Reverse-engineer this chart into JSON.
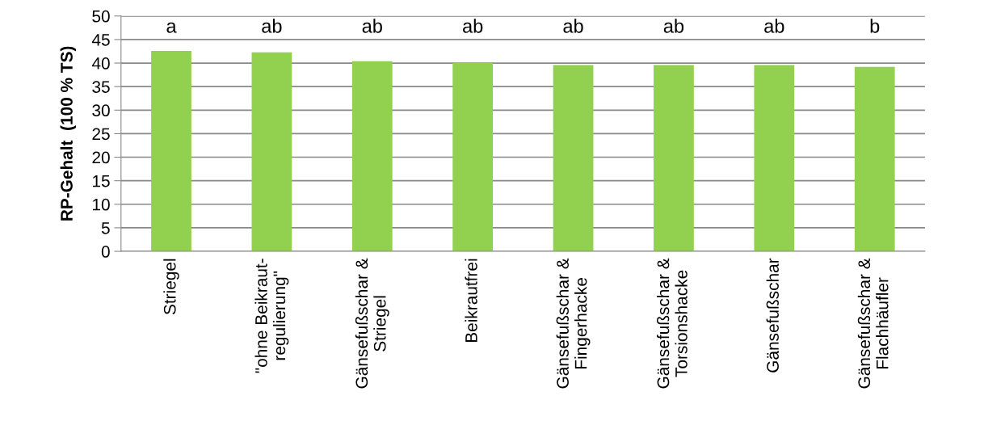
{
  "chart_data": {
    "type": "bar",
    "ylabel": "RP-Gehalt  (100 % TS)",
    "categories": [
      "Striegel",
      "\"ohne Beikraut-\nregulierung\"",
      "Gänsefußschar &\nStriegel",
      "Beikrautfrei",
      "Gänsefußschar &\nFingerhacke",
      "Gänsefußschar &\nTorsionshacke",
      "Gänsefußschar",
      "Gänsefußschar &\nFlachhäufler"
    ],
    "values": [
      42.6,
      42.3,
      40.4,
      40.1,
      39.6,
      39.6,
      39.6,
      39.2
    ],
    "color": "#92d050",
    "ylim": [
      0,
      50
    ],
    "yticks": [
      0,
      5,
      10,
      15,
      20,
      25,
      30,
      35,
      40,
      45,
      50
    ],
    "grid": "y",
    "legend": false,
    "annotations": [
      "a",
      "ab",
      "ab",
      "ab",
      "ab",
      "ab",
      "ab",
      "b"
    ]
  }
}
